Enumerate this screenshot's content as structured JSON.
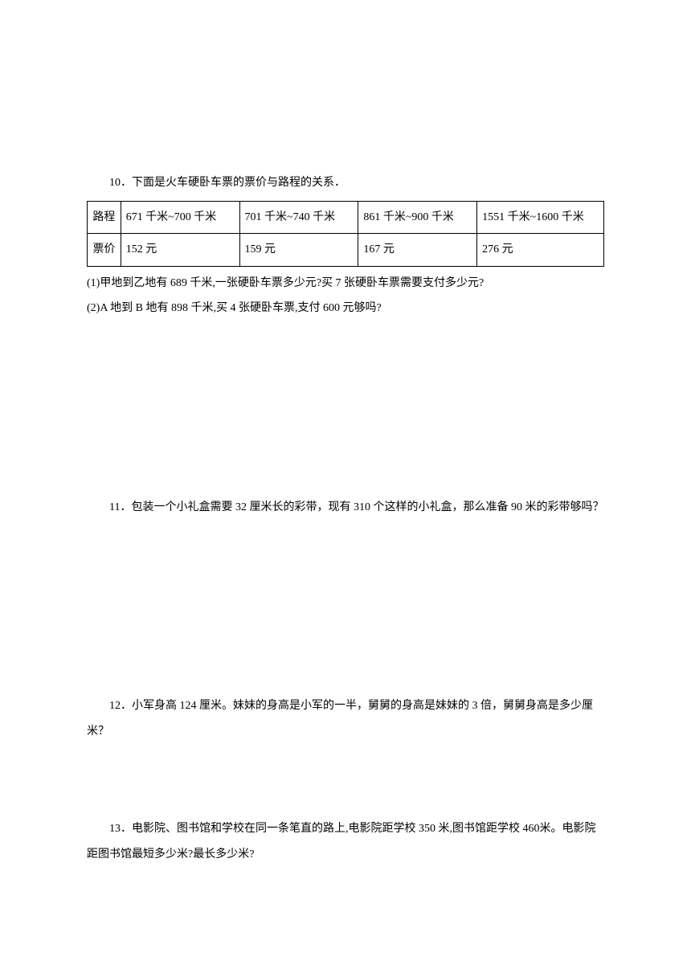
{
  "q10": {
    "intro": "10．下面是火车硬卧车票的票价与路程的关系．",
    "table": {
      "row1_header": "路程",
      "row1_cells": [
        "671 千米~700 千米",
        "701 千米~740 千米",
        "861 千米~900 千米",
        "1551 千米~1600 千米"
      ],
      "row2_header": "票价",
      "row2_cells": [
        "152 元",
        "159 元",
        "167 元",
        "276 元"
      ]
    },
    "sub1": "(1)甲地到乙地有 689 千米,一张硬卧车票多少元?买 7 张硬卧车票需要支付多少元?",
    "sub2": "(2)A 地到 B 地有 898 千米,买 4 张硬卧车票,支付 600 元够吗?"
  },
  "q11": {
    "text": "11．包装一个小礼盒需要 32 厘米长的彩带，现有 310 个这样的小礼盒，那么准备 90 米的彩带够吗？"
  },
  "q12": {
    "text": "12．小军身高 124 厘米。妹妹的身高是小军的一半，舅舅的身高是妹妹的 3 倍，舅舅身高是多少厘米？"
  },
  "q13": {
    "text": "13．电影院、图书馆和学校在同一条笔直的路上,电影院距学校 350 米,图书馆距学校 460米。电影院距图书馆最短多少米?最长多少米?"
  }
}
